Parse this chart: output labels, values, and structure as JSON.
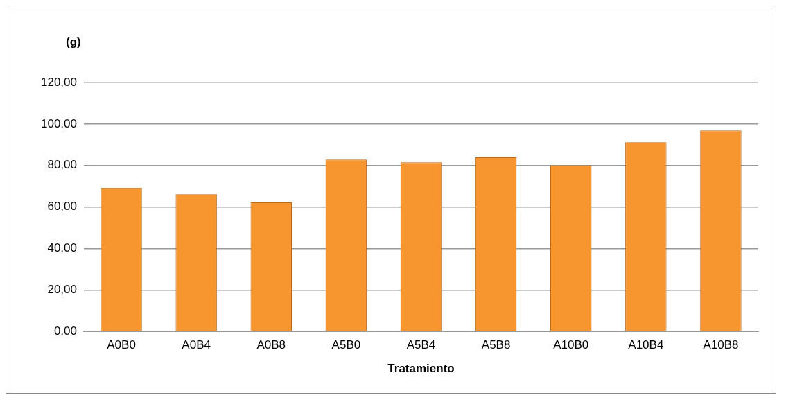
{
  "chart_data": {
    "type": "bar",
    "ylabel": "(g)",
    "xlabel": "Tratamiento",
    "categories": [
      "A0B0",
      "A0B4",
      "A0B8",
      "A5B0",
      "A5B4",
      "A5B8",
      "A10B0",
      "A10B4",
      "A10B8"
    ],
    "values": [
      69.3,
      66.1,
      62.2,
      82.8,
      81.5,
      83.9,
      80.1,
      91.2,
      96.9
    ],
    "color": "#f7962f",
    "ylim": [
      0,
      120
    ],
    "yticks": [
      {
        "value": 0,
        "label": "0,00"
      },
      {
        "value": 20,
        "label": "20,00"
      },
      {
        "value": 40,
        "label": "40,00"
      },
      {
        "value": 60,
        "label": "60,00"
      },
      {
        "value": 80,
        "label": "80,00"
      },
      {
        "value": 100,
        "label": "100,00"
      },
      {
        "value": 120,
        "label": "120,00"
      }
    ],
    "grid": "y",
    "legend": false
  }
}
